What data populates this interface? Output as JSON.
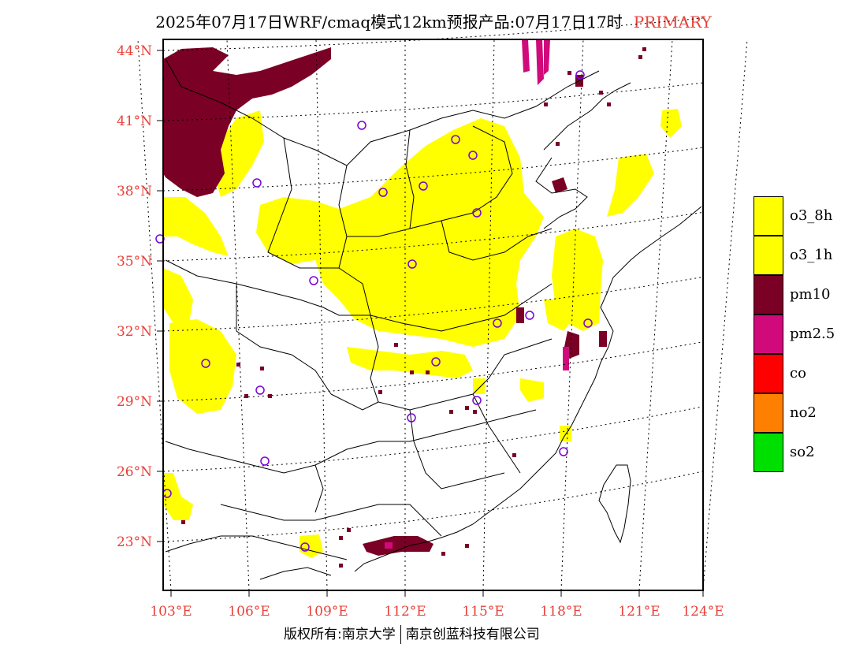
{
  "title": {
    "main": "2025年07月17日WRF/cmaq模式12km预报产品:07月17日17时",
    "tag": "PRIMARY"
  },
  "axes": {
    "lat_labels": [
      "44°N",
      "41°N",
      "38°N",
      "35°N",
      "32°N",
      "29°N",
      "26°N",
      "23°N"
    ],
    "lon_labels": [
      "103°E",
      "106°E",
      "109°E",
      "112°E",
      "115°E",
      "118°E",
      "121°E",
      "124°E"
    ]
  },
  "legend": [
    {
      "label": "o3_8h",
      "color": "#ffff00"
    },
    {
      "label": "o3_1h",
      "color": "#ffff00"
    },
    {
      "label": "pm10",
      "color": "#7a0026"
    },
    {
      "label": "pm2.5",
      "color": "#d10a7b"
    },
    {
      "label": "co",
      "color": "#ff0000"
    },
    {
      "label": "no2",
      "color": "#ff8000"
    },
    {
      "label": "so2",
      "color": "#00e000"
    }
  ],
  "footer": {
    "left": "版权所有:南京大学",
    "right": "南京创蓝科技有限公司"
  },
  "colors": {
    "label_red": "#e8413a",
    "o3": "#ffff00",
    "pm10": "#7a0026",
    "pm25": "#d10a7b",
    "station": "#7a00d9"
  }
}
